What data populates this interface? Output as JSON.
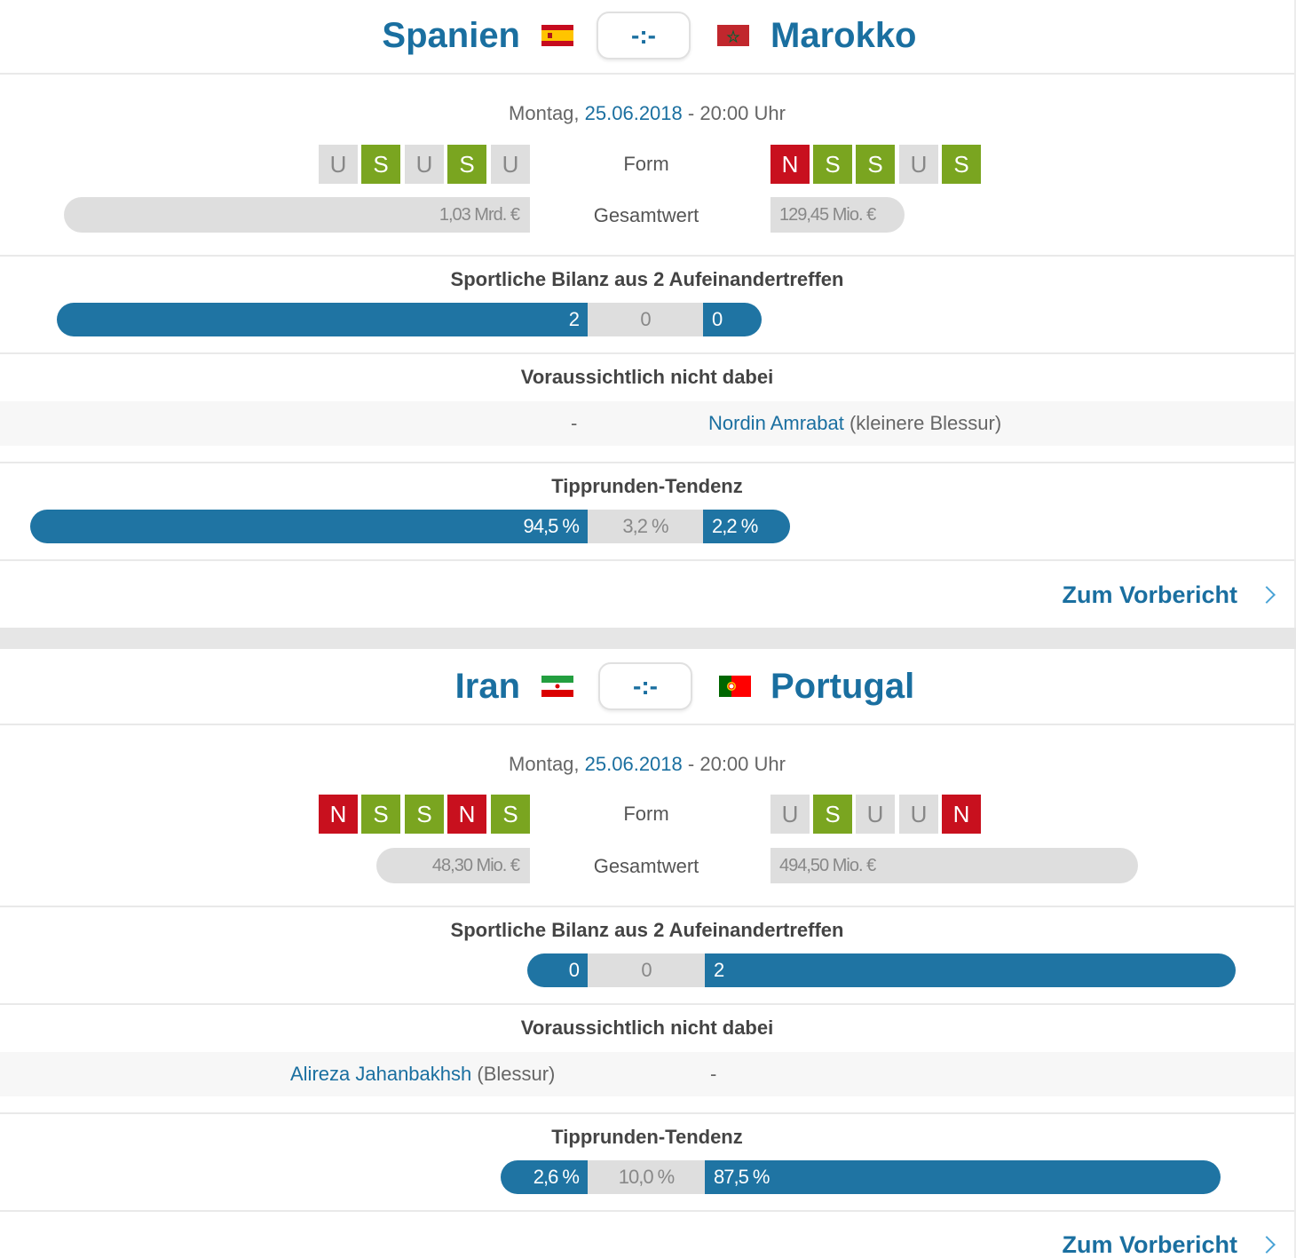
{
  "matches": [
    {
      "home": {
        "name": "Spanien",
        "flag": "spain-flag",
        "form": [
          "U",
          "S",
          "U",
          "S",
          "U"
        ],
        "value": "1,03 Mrd. €",
        "absent_player": "",
        "absent_reason": "",
        "absent_dash": "-"
      },
      "away": {
        "name": "Marokko",
        "flag": "morocco-flag",
        "form": [
          "N",
          "S",
          "S",
          "U",
          "S"
        ],
        "value": "129,45 Mio. €",
        "absent_player": "Nordin Amrabat",
        "absent_reason": "(kleinere Blessur)",
        "absent_dash": ""
      },
      "score": "-:-",
      "weekday": "Montag,",
      "date": "25.06.2018",
      "time_sep": "-",
      "time": "20:00 Uhr",
      "form_label": "Form",
      "value_label": "Gesamtwert",
      "h2h_title": "Sportliche Bilanz aus 2 Aufeinandertreffen",
      "h2h": {
        "home": "2",
        "draw": "0",
        "away": "0"
      },
      "absent_title": "Voraussichtlich nicht dabei",
      "tip_title": "Tipprunden-Tendenz",
      "tip": {
        "home": "94,5 %",
        "draw": "3,2 %",
        "away": "2,2 %"
      },
      "link": "Zum Vorbericht"
    },
    {
      "home": {
        "name": "Iran",
        "flag": "iran-flag",
        "form": [
          "N",
          "S",
          "S",
          "N",
          "S"
        ],
        "value": "48,30 Mio. €",
        "absent_player": "Alireza Jahanbakhsh",
        "absent_reason": "(Blessur)",
        "absent_dash": ""
      },
      "away": {
        "name": "Portugal",
        "flag": "portugal-flag",
        "form": [
          "U",
          "S",
          "U",
          "U",
          "N"
        ],
        "value": "494,50 Mio. €",
        "absent_player": "",
        "absent_reason": "",
        "absent_dash": "-"
      },
      "score": "-:-",
      "weekday": "Montag,",
      "date": "25.06.2018",
      "time_sep": "-",
      "time": "20:00 Uhr",
      "form_label": "Form",
      "value_label": "Gesamtwert",
      "h2h_title": "Sportliche Bilanz aus 2 Aufeinandertreffen",
      "h2h": {
        "home": "0",
        "draw": "0",
        "away": "2"
      },
      "absent_title": "Voraussichtlich nicht dabei",
      "tip_title": "Tipprunden-Tendenz",
      "tip": {
        "home": "2,6 %",
        "draw": "10,0 %",
        "away": "87,5 %"
      },
      "link": "Zum Vorbericht"
    }
  ],
  "colors": {
    "accent": "#1a6fa0",
    "bar_blue": "#1f74a3",
    "win": "#7aa520",
    "draw": "#dedede",
    "loss": "#c8101e"
  }
}
